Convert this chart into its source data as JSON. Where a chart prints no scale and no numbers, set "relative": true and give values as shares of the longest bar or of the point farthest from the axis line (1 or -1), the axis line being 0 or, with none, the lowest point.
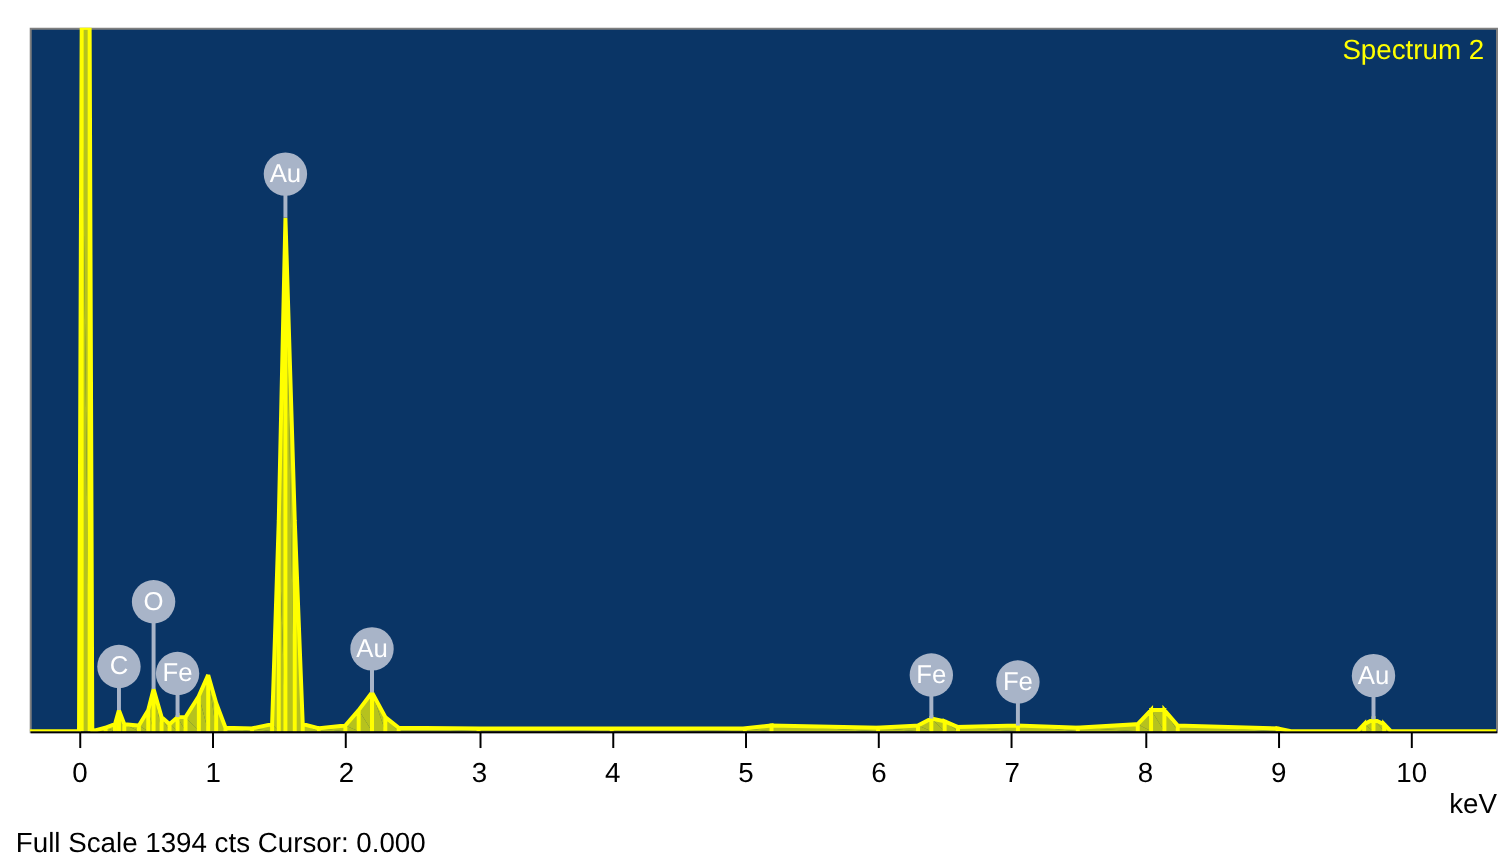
{
  "chart_data": {
    "type": "area",
    "title": "Spectrum 2",
    "xlabel": "keV",
    "relative": true,
    "x": [
      -0.37,
      0.0,
      0.02,
      0.08,
      0.1,
      0.2,
      0.27,
      0.3,
      0.34,
      0.45,
      0.52,
      0.56,
      0.62,
      0.68,
      0.74,
      0.8,
      0.9,
      0.97,
      1.03,
      1.1,
      1.3,
      1.45,
      1.5,
      1.55,
      1.62,
      1.68,
      1.8,
      2.0,
      2.1,
      2.2,
      2.3,
      2.4,
      3.0,
      4.0,
      5.0,
      5.2,
      6.0,
      6.3,
      6.4,
      6.5,
      6.6,
      7.05,
      7.5,
      7.95,
      8.05,
      8.15,
      8.25,
      9.0,
      9.1,
      9.6,
      9.65,
      9.72,
      9.8,
      9.85,
      10.64
    ],
    "series": [
      {
        "color": "#ffff00",
        "values": [
          0,
          0,
          1,
          1,
          0,
          0.005,
          0.01,
          0.03,
          0.01,
          0.008,
          0.03,
          0.06,
          0.02,
          0.01,
          0.02,
          0.02,
          0.05,
          0.08,
          0.04,
          0.005,
          0.004,
          0.01,
          0.3,
          0.73,
          0.3,
          0.01,
          0.004,
          0.008,
          0.03,
          0.055,
          0.02,
          0.005,
          0.004,
          0.004,
          0.004,
          0.008,
          0.005,
          0.008,
          0.018,
          0.014,
          0.006,
          0.008,
          0.005,
          0.01,
          0.03,
          0.03,
          0.008,
          0.004,
          0,
          0,
          0.01,
          0.017,
          0.01,
          0,
          0
        ]
      }
    ],
    "xlim": [
      -0.37,
      10.64
    ],
    "xticks": [
      0,
      1,
      2,
      3,
      4,
      5,
      6,
      7,
      8,
      9,
      10
    ],
    "grid": false,
    "annotations": [
      {
        "text": "C",
        "x": 0.3,
        "y": 0.03
      },
      {
        "text": "O",
        "x": 0.56,
        "y": 0.06
      },
      {
        "text": "Fe",
        "x": 0.74,
        "y": 0.02
      },
      {
        "text": "Au",
        "x": 1.55,
        "y": 0.73
      },
      {
        "text": "Au",
        "x": 2.2,
        "y": 0.055
      },
      {
        "text": "Fe",
        "x": 6.4,
        "y": 0.018
      },
      {
        "text": "Fe",
        "x": 7.05,
        "y": 0.008
      },
      {
        "text": "Au",
        "x": 9.72,
        "y": 0.017
      },
      "Full Scale 1394 cts Cursor: 0.000"
    ]
  }
}
